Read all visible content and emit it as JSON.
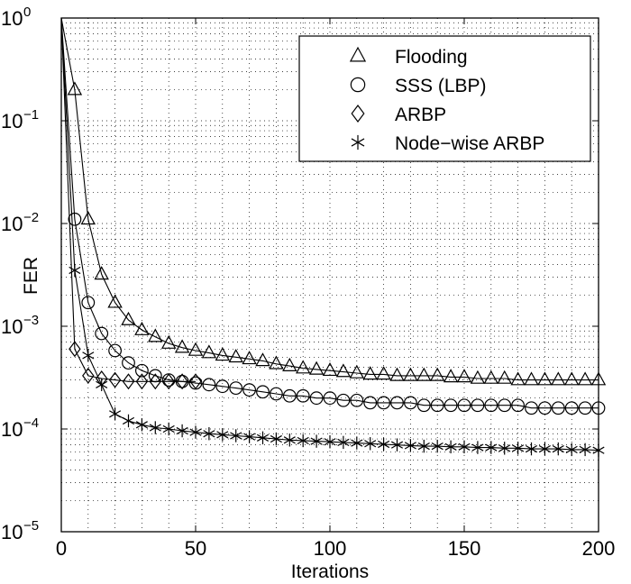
{
  "chart_data": {
    "type": "line",
    "xlabel": "Iterations",
    "ylabel": "FER",
    "xlim": [
      0,
      200
    ],
    "ylim": [
      1e-05,
      1
    ],
    "y_scale": "log",
    "grid": "on (dotted, major and minor)",
    "legend_position": "top-right",
    "x_ticks": [
      "0",
      "50",
      "100",
      "150",
      "200"
    ],
    "y_ticks": [
      {
        "base": "10",
        "exp": "0"
      },
      {
        "base": "10",
        "exp": "−1"
      },
      {
        "base": "10",
        "exp": "−2"
      },
      {
        "base": "10",
        "exp": "−3"
      },
      {
        "base": "10",
        "exp": "−4"
      },
      {
        "base": "10",
        "exp": "−5"
      }
    ],
    "series": [
      {
        "name": "Flooding",
        "marker": "triangle",
        "x": [
          5,
          10,
          15,
          20,
          25,
          30,
          35,
          40,
          45,
          50,
          55,
          60,
          65,
          70,
          75,
          80,
          85,
          90,
          95,
          100,
          105,
          110,
          115,
          120,
          125,
          130,
          135,
          140,
          145,
          150,
          155,
          160,
          165,
          170,
          175,
          180,
          185,
          190,
          195,
          200
        ],
        "y": [
          0.2,
          0.011,
          0.0032,
          0.0017,
          0.00115,
          0.00092,
          0.00079,
          0.00068,
          0.00062,
          0.00058,
          0.00055,
          0.00052,
          0.0005,
          0.00048,
          0.00046,
          0.00043,
          0.00041,
          0.00039,
          0.00038,
          0.00037,
          0.00036,
          0.00035,
          0.00034,
          0.00034,
          0.00033,
          0.00033,
          0.00033,
          0.00033,
          0.00032,
          0.00032,
          0.00031,
          0.00031,
          0.00031,
          0.0003,
          0.0003,
          0.0003,
          0.0003,
          0.0003,
          0.0003,
          0.0003
        ]
      },
      {
        "name": "SSS (LBP)",
        "marker": "circle",
        "x": [
          5,
          10,
          15,
          20,
          25,
          30,
          35,
          40,
          45,
          50,
          55,
          60,
          65,
          70,
          75,
          80,
          85,
          90,
          95,
          100,
          105,
          110,
          115,
          120,
          125,
          130,
          135,
          140,
          145,
          150,
          155,
          160,
          165,
          170,
          175,
          180,
          185,
          190,
          195,
          200
        ],
        "y": [
          0.011,
          0.0017,
          0.00085,
          0.00058,
          0.00044,
          0.00037,
          0.00033,
          0.0003,
          0.00029,
          0.00028,
          0.00027,
          0.00026,
          0.00025,
          0.00024,
          0.00023,
          0.00022,
          0.00021,
          0.00021,
          0.0002,
          0.0002,
          0.00019,
          0.00019,
          0.00018,
          0.00018,
          0.00018,
          0.00018,
          0.00017,
          0.00017,
          0.00017,
          0.00017,
          0.00017,
          0.00017,
          0.00017,
          0.00017,
          0.00016,
          0.00016,
          0.00016,
          0.00016,
          0.00016,
          0.00016
        ]
      },
      {
        "name": "ARBP",
        "marker": "diamond",
        "x": [
          5,
          10,
          15,
          20,
          25,
          30,
          35,
          40,
          45,
          50
        ],
        "y": [
          0.0006,
          0.00033,
          0.00031,
          0.0003,
          0.00029,
          0.00029,
          0.00029,
          0.00029,
          0.00029,
          0.00029
        ]
      },
      {
        "name": "Node−wise ARBP",
        "marker": "asterisk",
        "x": [
          5,
          10,
          15,
          20,
          25,
          30,
          35,
          40,
          45,
          50,
          55,
          60,
          65,
          70,
          75,
          80,
          85,
          90,
          95,
          100,
          105,
          110,
          115,
          120,
          125,
          130,
          135,
          140,
          145,
          150,
          155,
          160,
          165,
          170,
          175,
          180,
          185,
          190,
          195,
          200
        ],
        "y": [
          0.0035,
          0.00052,
          0.00027,
          0.00014,
          0.00012,
          0.00011,
          0.000103,
          0.0001,
          9.6e-05,
          9.3e-05,
          9e-05,
          8.8e-05,
          8.6e-05,
          8.4e-05,
          8.2e-05,
          8e-05,
          7.8e-05,
          7.7e-05,
          7.6e-05,
          7.5e-05,
          7.4e-05,
          7.3e-05,
          7.2e-05,
          7.1e-05,
          7e-05,
          6.9e-05,
          6.8e-05,
          6.8e-05,
          6.7e-05,
          6.7e-05,
          6.6e-05,
          6.6e-05,
          6.5e-05,
          6.5e-05,
          6.4e-05,
          6.4e-05,
          6.4e-05,
          6.3e-05,
          6.3e-05,
          6.2e-05
        ]
      }
    ]
  }
}
